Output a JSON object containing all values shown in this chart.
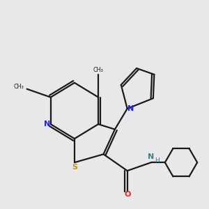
{
  "background_color": "#e8e8e8",
  "bond_color": "#1a1a1a",
  "N_color": "#2020ff",
  "S_color": "#b8a000",
  "O_color": "#ff2020",
  "NH_color": "#408080",
  "figsize": [
    3.0,
    3.0
  ],
  "dpi": 100,
  "xlim": [
    0,
    10
  ],
  "ylim": [
    0,
    10
  ]
}
